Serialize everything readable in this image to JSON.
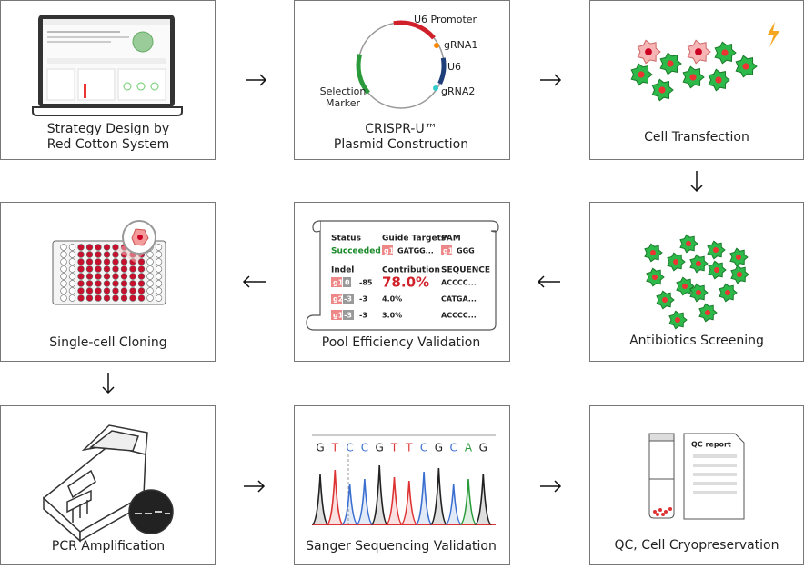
{
  "steps": [
    {
      "label": [
        "Strategy Design by",
        "Red Cotton System"
      ]
    },
    {
      "label": [
        "CRISPR-U™",
        "Plasmid Construction"
      ]
    },
    {
      "label": [
        "Cell Transfection"
      ]
    },
    {
      "label": [
        "Antibiotics Screening"
      ]
    },
    {
      "label": [
        "Pool Efficiency Validation"
      ]
    },
    {
      "label": [
        "Single-cell Cloning"
      ]
    },
    {
      "label": [
        "PCR Amplification"
      ]
    },
    {
      "label": [
        "Sanger Sequencing Validation"
      ]
    },
    {
      "label": [
        "QC, Cell Cryopreservation"
      ]
    }
  ],
  "plasmid": {
    "labels": [
      "U6 Promoter",
      "gRNA1",
      "U6",
      "gRNA2",
      "Selection",
      "Marker"
    ]
  },
  "pool": {
    "headers": [
      "Status",
      "Guide Targets",
      "PAM",
      "Indel",
      "Contribution",
      "SEQUENCE"
    ],
    "status": "Succeeded",
    "target_tag": "g1",
    "target": "GATGG...",
    "pam_tag": "g1",
    "pam": "GGG",
    "rows": [
      {
        "guide": "g1",
        "indel": "0",
        "size": "-85",
        "contribution": "78.0%",
        "sequence": "ACCCC..."
      },
      {
        "guide": "g2",
        "indel": "-3",
        "size": "-3",
        "contribution": "4.0%",
        "sequence": "CATGA..."
      },
      {
        "guide": "g1",
        "indel": "-3",
        "size": "-3",
        "contribution": "3.0%",
        "sequence": "ACCCC..."
      }
    ]
  },
  "sequencing": {
    "bases": [
      "G",
      "T",
      "C",
      "C",
      "G",
      "T",
      "T",
      "C",
      "G",
      "C",
      "A",
      "G"
    ]
  },
  "qc": {
    "title": "QC report"
  }
}
